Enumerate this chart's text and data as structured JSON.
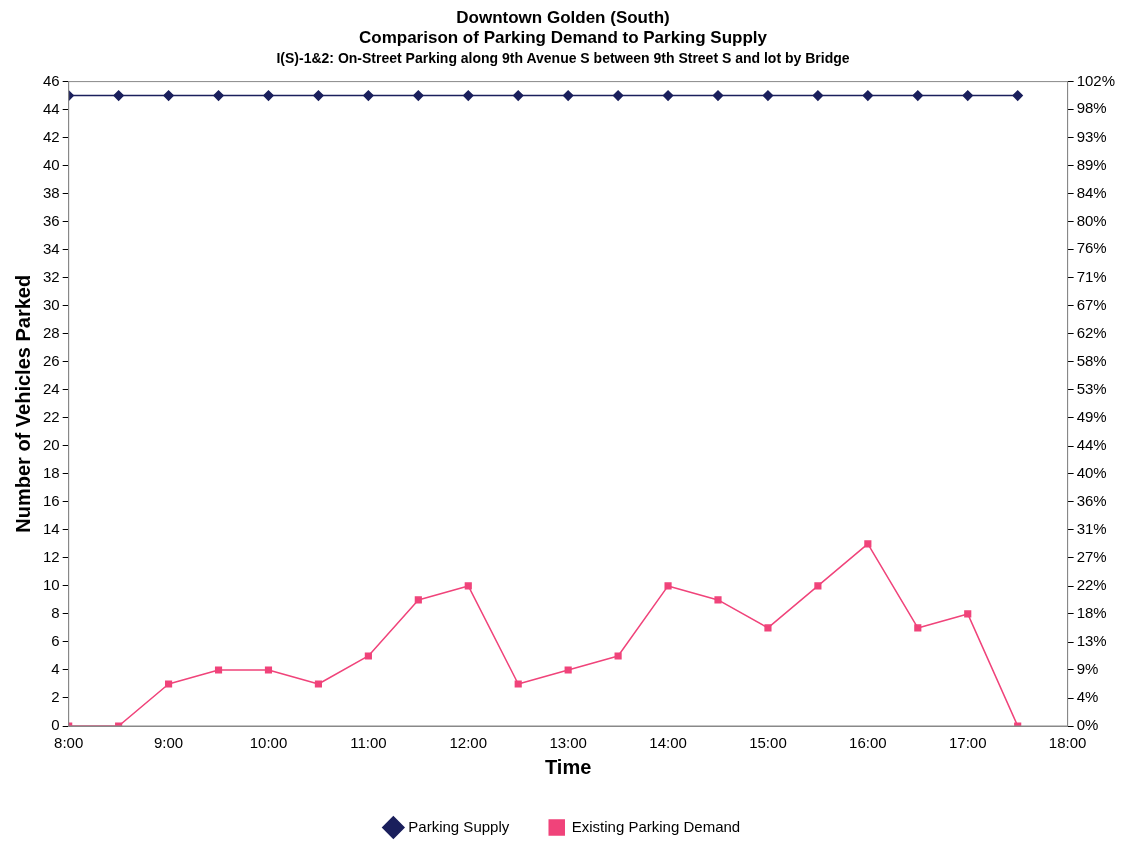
{
  "chart_data": {
    "type": "line",
    "title": "Downtown Golden (South)\nComparison of Parking Demand to Parking Supply",
    "subtitle": "I(S)-1&2: On-Street Parking along 9th Avenue S between 9th Street S and lot by Bridge",
    "xlabel": "Time",
    "ylabel": "Number of Vehicles Parked",
    "x": [
      8,
      8.5,
      9,
      9.5,
      10,
      10.5,
      11,
      11.5,
      12,
      12.5,
      13,
      13.5,
      14,
      14.5,
      15,
      15.5,
      16,
      16.5,
      17,
      17.5
    ],
    "series": [
      {
        "name": "Parking Supply",
        "color": "#1a1f5c",
        "marker": "diamond",
        "values": [
          45,
          45,
          45,
          45,
          45,
          45,
          45,
          45,
          45,
          45,
          45,
          45,
          45,
          45,
          45,
          45,
          45,
          45,
          45,
          45
        ]
      },
      {
        "name": "Existing Parking Demand",
        "color": "#f0437a",
        "marker": "square",
        "values": [
          0,
          0,
          3,
          4,
          4,
          3,
          5,
          9,
          10,
          3,
          4,
          5,
          10,
          9,
          7,
          10,
          13,
          7,
          8,
          0
        ]
      }
    ],
    "xlim": [
      8,
      18
    ],
    "xticks": [
      {
        "value": 8,
        "label": "8:00"
      },
      {
        "value": 9,
        "label": "9:00"
      },
      {
        "value": 10,
        "label": "10:00"
      },
      {
        "value": 11,
        "label": "11:00"
      },
      {
        "value": 12,
        "label": "12:00"
      },
      {
        "value": 13,
        "label": "13:00"
      },
      {
        "value": 14,
        "label": "14:00"
      },
      {
        "value": 15,
        "label": "15:00"
      },
      {
        "value": 16,
        "label": "16:00"
      },
      {
        "value": 17,
        "label": "17:00"
      },
      {
        "value": 18,
        "label": "18:00"
      }
    ],
    "ylim": [
      0,
      46
    ],
    "yticks": [
      0,
      2,
      4,
      6,
      8,
      10,
      12,
      14,
      16,
      18,
      20,
      22,
      24,
      26,
      28,
      30,
      32,
      34,
      36,
      38,
      40,
      42,
      44,
      46
    ],
    "y2lim": [
      0,
      102.2
    ],
    "y2ticks": [
      {
        "value": 0,
        "label": "0%"
      },
      {
        "value": 4.4,
        "label": "4%"
      },
      {
        "value": 8.9,
        "label": "9%"
      },
      {
        "value": 13.3,
        "label": "13%"
      },
      {
        "value": 17.8,
        "label": "18%"
      },
      {
        "value": 22.2,
        "label": "22%"
      },
      {
        "value": 26.7,
        "label": "27%"
      },
      {
        "value": 31.1,
        "label": "31%"
      },
      {
        "value": 35.6,
        "label": "36%"
      },
      {
        "value": 40,
        "label": "40%"
      },
      {
        "value": 44.4,
        "label": "44%"
      },
      {
        "value": 48.9,
        "label": "49%"
      },
      {
        "value": 53.3,
        "label": "53%"
      },
      {
        "value": 57.8,
        "label": "58%"
      },
      {
        "value": 62.2,
        "label": "62%"
      },
      {
        "value": 66.7,
        "label": "67%"
      },
      {
        "value": 71.1,
        "label": "71%"
      },
      {
        "value": 75.6,
        "label": "76%"
      },
      {
        "value": 80,
        "label": "80%"
      },
      {
        "value": 84.4,
        "label": "84%"
      },
      {
        "value": 88.9,
        "label": "89%"
      },
      {
        "value": 93.3,
        "label": "93%"
      },
      {
        "value": 97.8,
        "label": "98%"
      },
      {
        "value": 102.2,
        "label": "102%"
      }
    ],
    "grid": false,
    "legend": "bottom",
    "line_style": "solid"
  }
}
